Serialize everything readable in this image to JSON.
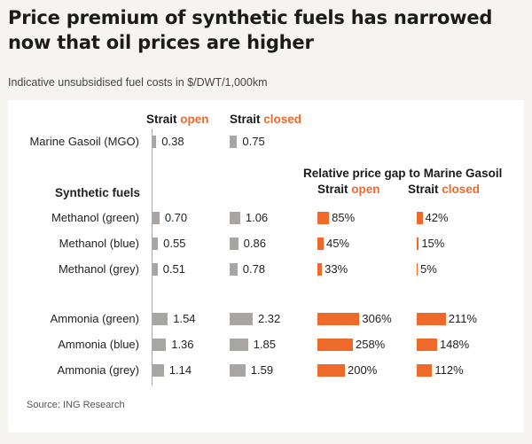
{
  "title": "Price premium of synthetic fuels has narrowed now that oil prices are higher",
  "subtitle": "Indicative unsubsidised fuel costs in $/DWT/1,000km",
  "source": "Source: ING Research",
  "colors": {
    "grey_bar": "#a8a5a2",
    "orange_bar": "#ee6a2a",
    "accent_text": "#ee6a2a"
  },
  "headers": {
    "open_prefix": "Strait ",
    "open_word": "open",
    "closed_prefix": "Strait ",
    "closed_word": "closed",
    "gap_title": "Relative price gap to Marine Gasoil",
    "synthetic_fuels": "Synthetic fuels"
  },
  "chart_data": {
    "type": "bar",
    "categories": [
      "Marine Gasoil (MGO)",
      "Methanol (green)",
      "Methanol (blue)",
      "Methanol (grey)",
      "Ammonia (green)",
      "Ammonia (blue)",
      "Ammonia (grey)"
    ],
    "series": [
      {
        "name": "Strait open",
        "values": [
          0.38,
          0.7,
          0.55,
          0.51,
          1.54,
          1.36,
          1.14
        ],
        "labels": [
          "0.38",
          "0.70",
          "0.55",
          "0.51",
          "1.54",
          "1.36",
          "1.14"
        ]
      },
      {
        "name": "Strait closed",
        "values": [
          0.75,
          1.06,
          0.86,
          0.78,
          2.32,
          1.85,
          1.59
        ],
        "labels": [
          "0.75",
          "1.06",
          "0.86",
          "0.78",
          "2.32",
          "1.85",
          "1.59"
        ]
      }
    ],
    "gap_series": [
      {
        "name": "Strait open",
        "values": [
          null,
          85,
          45,
          33,
          306,
          258,
          200
        ],
        "labels": [
          "",
          "85%",
          "45%",
          "33%",
          "306%",
          "258%",
          "200%"
        ]
      },
      {
        "name": "Strait closed",
        "values": [
          null,
          42,
          15,
          5,
          211,
          148,
          112
        ],
        "labels": [
          "",
          "42%",
          "15%",
          "5%",
          "211%",
          "148%",
          "112%"
        ]
      }
    ],
    "title": "Price premium of synthetic fuels has narrowed now that oil prices are higher",
    "ylabel": "",
    "xlabel": "",
    "grid": false,
    "legend": "none"
  }
}
